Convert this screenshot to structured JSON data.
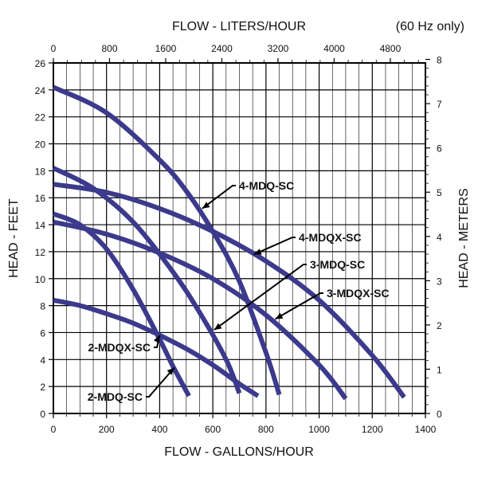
{
  "chart_data": {
    "type": "line",
    "title": "",
    "note": "(60 Hz only)",
    "xlabel": "FLOW - GALLONS/HOUR",
    "ylabel": "HEAD - FEET",
    "x2label": "FLOW - LITERS/HOUR",
    "y2label": "HEAD - METERS",
    "xlim": [
      0,
      1400
    ],
    "ylim": [
      0,
      26
    ],
    "x2lim": [
      0,
      5300
    ],
    "y2lim": [
      0,
      7.92
    ],
    "x_ticks": [
      0,
      200,
      400,
      600,
      800,
      1000,
      1200,
      1400
    ],
    "y_ticks": [
      0,
      2,
      4,
      6,
      8,
      10,
      12,
      14,
      16,
      18,
      20,
      22,
      24,
      26
    ],
    "x2_ticks": [
      0,
      800,
      1600,
      2400,
      3200,
      4000,
      4800
    ],
    "y2_ticks": [
      0,
      1,
      2,
      3,
      4,
      5,
      6,
      7,
      8
    ],
    "grid": true,
    "colors": {
      "curve": "#3b3a8c",
      "grid": "#000000"
    },
    "series": [
      {
        "name": "4-MDQ-SC",
        "x": [
          0,
          200,
          400,
          500,
          600,
          700,
          800,
          850
        ],
        "y": [
          24.2,
          22.3,
          18.8,
          16.5,
          13.5,
          9.8,
          4.5,
          1.4
        ]
      },
      {
        "name": "4-MDQX-SC",
        "x": [
          0,
          200,
          400,
          600,
          800,
          1000,
          1200,
          1320
        ],
        "y": [
          17.0,
          16.4,
          15.2,
          13.5,
          11.3,
          8.4,
          4.3,
          1.2
        ]
      },
      {
        "name": "3-MDQ-SC",
        "x": [
          0,
          150,
          300,
          450,
          550,
          650,
          700
        ],
        "y": [
          18.2,
          16.7,
          14.2,
          10.5,
          7.5,
          4.0,
          1.5
        ]
      },
      {
        "name": "3-MDQX-SC",
        "x": [
          0,
          200,
          400,
          600,
          800,
          1000,
          1100
        ],
        "y": [
          14.2,
          13.3,
          11.9,
          10.0,
          7.3,
          3.6,
          1.1
        ]
      },
      {
        "name": "2-MDQX-SC",
        "x": [
          0,
          100,
          200,
          300,
          400,
          500,
          600,
          700,
          770
        ],
        "y": [
          8.4,
          8.0,
          7.4,
          6.7,
          5.8,
          4.8,
          3.6,
          2.2,
          1.3
        ]
      },
      {
        "name": "2-MDQ-SC",
        "x": [
          0,
          100,
          200,
          300,
          400,
          450,
          510
        ],
        "y": [
          14.8,
          14.0,
          12.2,
          9.2,
          5.5,
          3.5,
          1.3
        ]
      }
    ],
    "annotations": [
      {
        "series": "4-MDQ-SC",
        "text": "4-MDQ-SC",
        "point": [
          560,
          15.2
        ]
      },
      {
        "series": "4-MDQX-SC",
        "text": "4-MDQX-SC",
        "point": [
          755,
          11.8
        ]
      },
      {
        "series": "3-MDQ-SC",
        "text": "3-MDQ-SC",
        "point": [
          605,
          6.2
        ]
      },
      {
        "series": "3-MDQX-SC",
        "text": "3-MDQX-SC",
        "point": [
          835,
          7.0
        ]
      },
      {
        "series": "2-MDQX-SC",
        "text": "2-MDQX-SC",
        "point": [
          400,
          5.8
        ]
      },
      {
        "series": "2-MDQ-SC",
        "text": "2-MDQ-SC",
        "point": [
          455,
          3.4
        ]
      }
    ]
  }
}
